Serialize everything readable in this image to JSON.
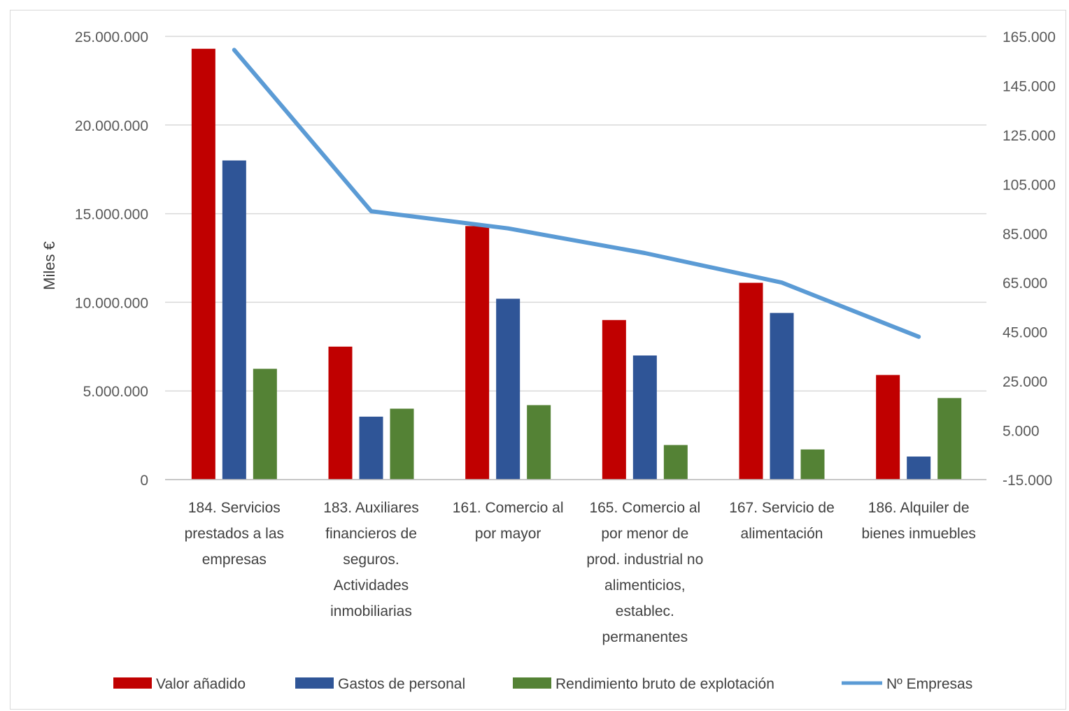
{
  "chart_data": {
    "type": "bar",
    "ylabel": "Miles €",
    "y_left": {
      "min": 0,
      "max": 25000000,
      "step": 5000000,
      "tick_labels": [
        "0",
        "5.000.000",
        "10.000.000",
        "15.000.000",
        "20.000.000",
        "25.000.000"
      ]
    },
    "y_right": {
      "min": -15000,
      "max": 165000,
      "step": 20000,
      "tick_labels": [
        "-15.000",
        "5.000",
        "25.000",
        "45.000",
        "65.000",
        "85.000",
        "105.000",
        "125.000",
        "145.000",
        "165.000"
      ]
    },
    "categories": [
      [
        "184. Servicios",
        "prestados a las",
        "empresas"
      ],
      [
        "183. Auxiliares",
        "financieros de",
        "seguros.",
        "Actividades",
        "inmobiliarias"
      ],
      [
        "161. Comercio al",
        "por mayor"
      ],
      [
        "165. Comercio al",
        "por menor de",
        "prod. industrial no",
        "alimenticios,",
        "establec.",
        "permanentes"
      ],
      [
        "167. Servicio de",
        "alimentación"
      ],
      [
        "186. Alquiler de",
        "bienes inmuebles"
      ]
    ],
    "series": [
      {
        "name": "Valor añadido",
        "kind": "bar",
        "axis": "left",
        "color": "#c00000",
        "values": [
          24300000,
          7500000,
          14300000,
          9000000,
          11100000,
          5900000
        ]
      },
      {
        "name": "Gastos de personal",
        "kind": "bar",
        "axis": "left",
        "color": "#2f5597",
        "values": [
          18000000,
          3550000,
          10200000,
          7000000,
          9400000,
          1300000
        ]
      },
      {
        "name": "Rendimiento bruto de explotación",
        "kind": "bar",
        "axis": "left",
        "color": "#548235",
        "values": [
          6250000,
          4000000,
          4200000,
          1950000,
          1700000,
          4600000
        ]
      },
      {
        "name": "Nº Empresas",
        "kind": "line",
        "axis": "right",
        "color": "#5b9bd5",
        "values": [
          159500,
          94000,
          87000,
          77000,
          65000,
          43000
        ]
      }
    ],
    "legend_position": "bottom",
    "grid": true
  }
}
